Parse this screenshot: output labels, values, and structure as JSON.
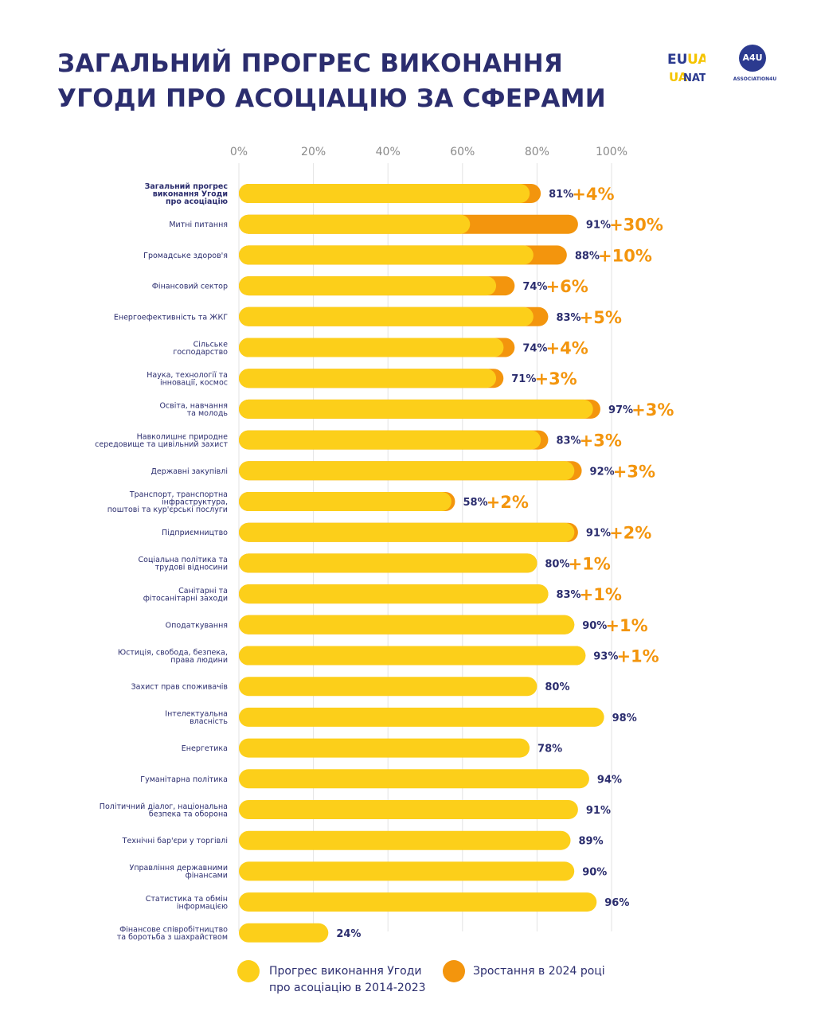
{
  "header": {
    "title_line1": "ЗАГАЛЬНИЙ ПРОГРЕС ВИКОНАННЯ",
    "title_line2": "УГОДИ ПРО АСОЦІАЦІЮ ЗА СФЕРАМИ",
    "logo1_text": "EU UA NATO",
    "logo2_mark": "A4U",
    "logo2_text": "ASSOCIATION4U"
  },
  "colors": {
    "base": "#fccf1a",
    "increase": "#f3950d",
    "navy": "#2b2d6e",
    "grid": "#e3e3e3"
  },
  "legend": {
    "base_line1": "Прогрес виконання Угоди",
    "base_line2": "про асоціацію в 2014-2023",
    "increase": "Зростання в 2024 році"
  },
  "chart_data": {
    "type": "bar",
    "orientation": "horizontal",
    "stacked": true,
    "xlim": [
      0,
      100
    ],
    "x_ticks": [
      "0%",
      "20%",
      "40%",
      "60%",
      "80%",
      "100%"
    ],
    "grid": true,
    "legend_position": "bottom",
    "categories": [
      [
        "Загальний прогрес",
        "виконання Угоди",
        "про асоціацію"
      ],
      [
        "Митні питання"
      ],
      [
        "Громадське здоров'я"
      ],
      [
        "Фінансовий сектор"
      ],
      [
        "Енергоефективність та ЖКГ"
      ],
      [
        "Сільське",
        "господарство"
      ],
      [
        "Наука, технології та",
        "інновації, космос"
      ],
      [
        "Освіта, навчання",
        "та молодь"
      ],
      [
        "Навколишнє природне",
        "середовище та цивільний захист"
      ],
      [
        "Державні закупівлі"
      ],
      [
        "Транспорт, транспортна",
        "інфраструктура,",
        "поштові та кур'єрські послуги"
      ],
      [
        "Підприємництво"
      ],
      [
        "Соціальна політика та",
        "трудові відносини"
      ],
      [
        "Санітарні та",
        "фітосанітарні заходи"
      ],
      [
        "Оподаткування"
      ],
      [
        "Юстиція, свобода, безпека,",
        "права людини"
      ],
      [
        "Захист прав споживачів"
      ],
      [
        "Інтелектуальна",
        "власність"
      ],
      [
        "Енергетика"
      ],
      [
        "Гуманітарна політика"
      ],
      [
        "Політичний діалог, національна",
        "безпека та оборона"
      ],
      [
        "Технічні бар'єри у торгівлі"
      ],
      [
        "Управління державними",
        "фінансами"
      ],
      [
        "Статистика та обмін",
        "інформацією"
      ],
      [
        "Фінансове співробітництво",
        "та боротьба з шахрайством"
      ]
    ],
    "totals": [
      81,
      91,
      88,
      74,
      83,
      74,
      71,
      97,
      83,
      92,
      58,
      91,
      80,
      83,
      90,
      93,
      80,
      98,
      78,
      94,
      91,
      89,
      90,
      96,
      24
    ],
    "value_labels": [
      "81%",
      "91%",
      "88%",
      "74%",
      "83%",
      "74%",
      "71%",
      "97%",
      "83%",
      "92%",
      "58%",
      "91%",
      "80%",
      "83%",
      "90%",
      "93%",
      "80%",
      "98%",
      "78%",
      "94%",
      "91%",
      "89%",
      "90%",
      "96%",
      "24%"
    ],
    "increase": [
      4,
      30,
      10,
      6,
      5,
      4,
      3,
      3,
      3,
      3,
      2,
      2,
      1,
      1,
      1,
      1,
      0,
      0,
      0,
      0,
      0,
      0,
      0,
      0,
      0
    ],
    "increase_labels": [
      "+4%",
      "+30%",
      "+10%",
      "+6%",
      "+5%",
      "+4%",
      "+3%",
      "+3%",
      "+3%",
      "+3%",
      "+2%",
      "+2%",
      "+1%",
      "+1%",
      "+1%",
      "+1%",
      "",
      "",
      "",
      "",
      "",
      "",
      "",
      "",
      ""
    ],
    "series": [
      {
        "name": "Прогрес виконання Угоди про асоціацію в 2014-2023"
      },
      {
        "name": "Зростання в 2024 році"
      }
    ]
  }
}
